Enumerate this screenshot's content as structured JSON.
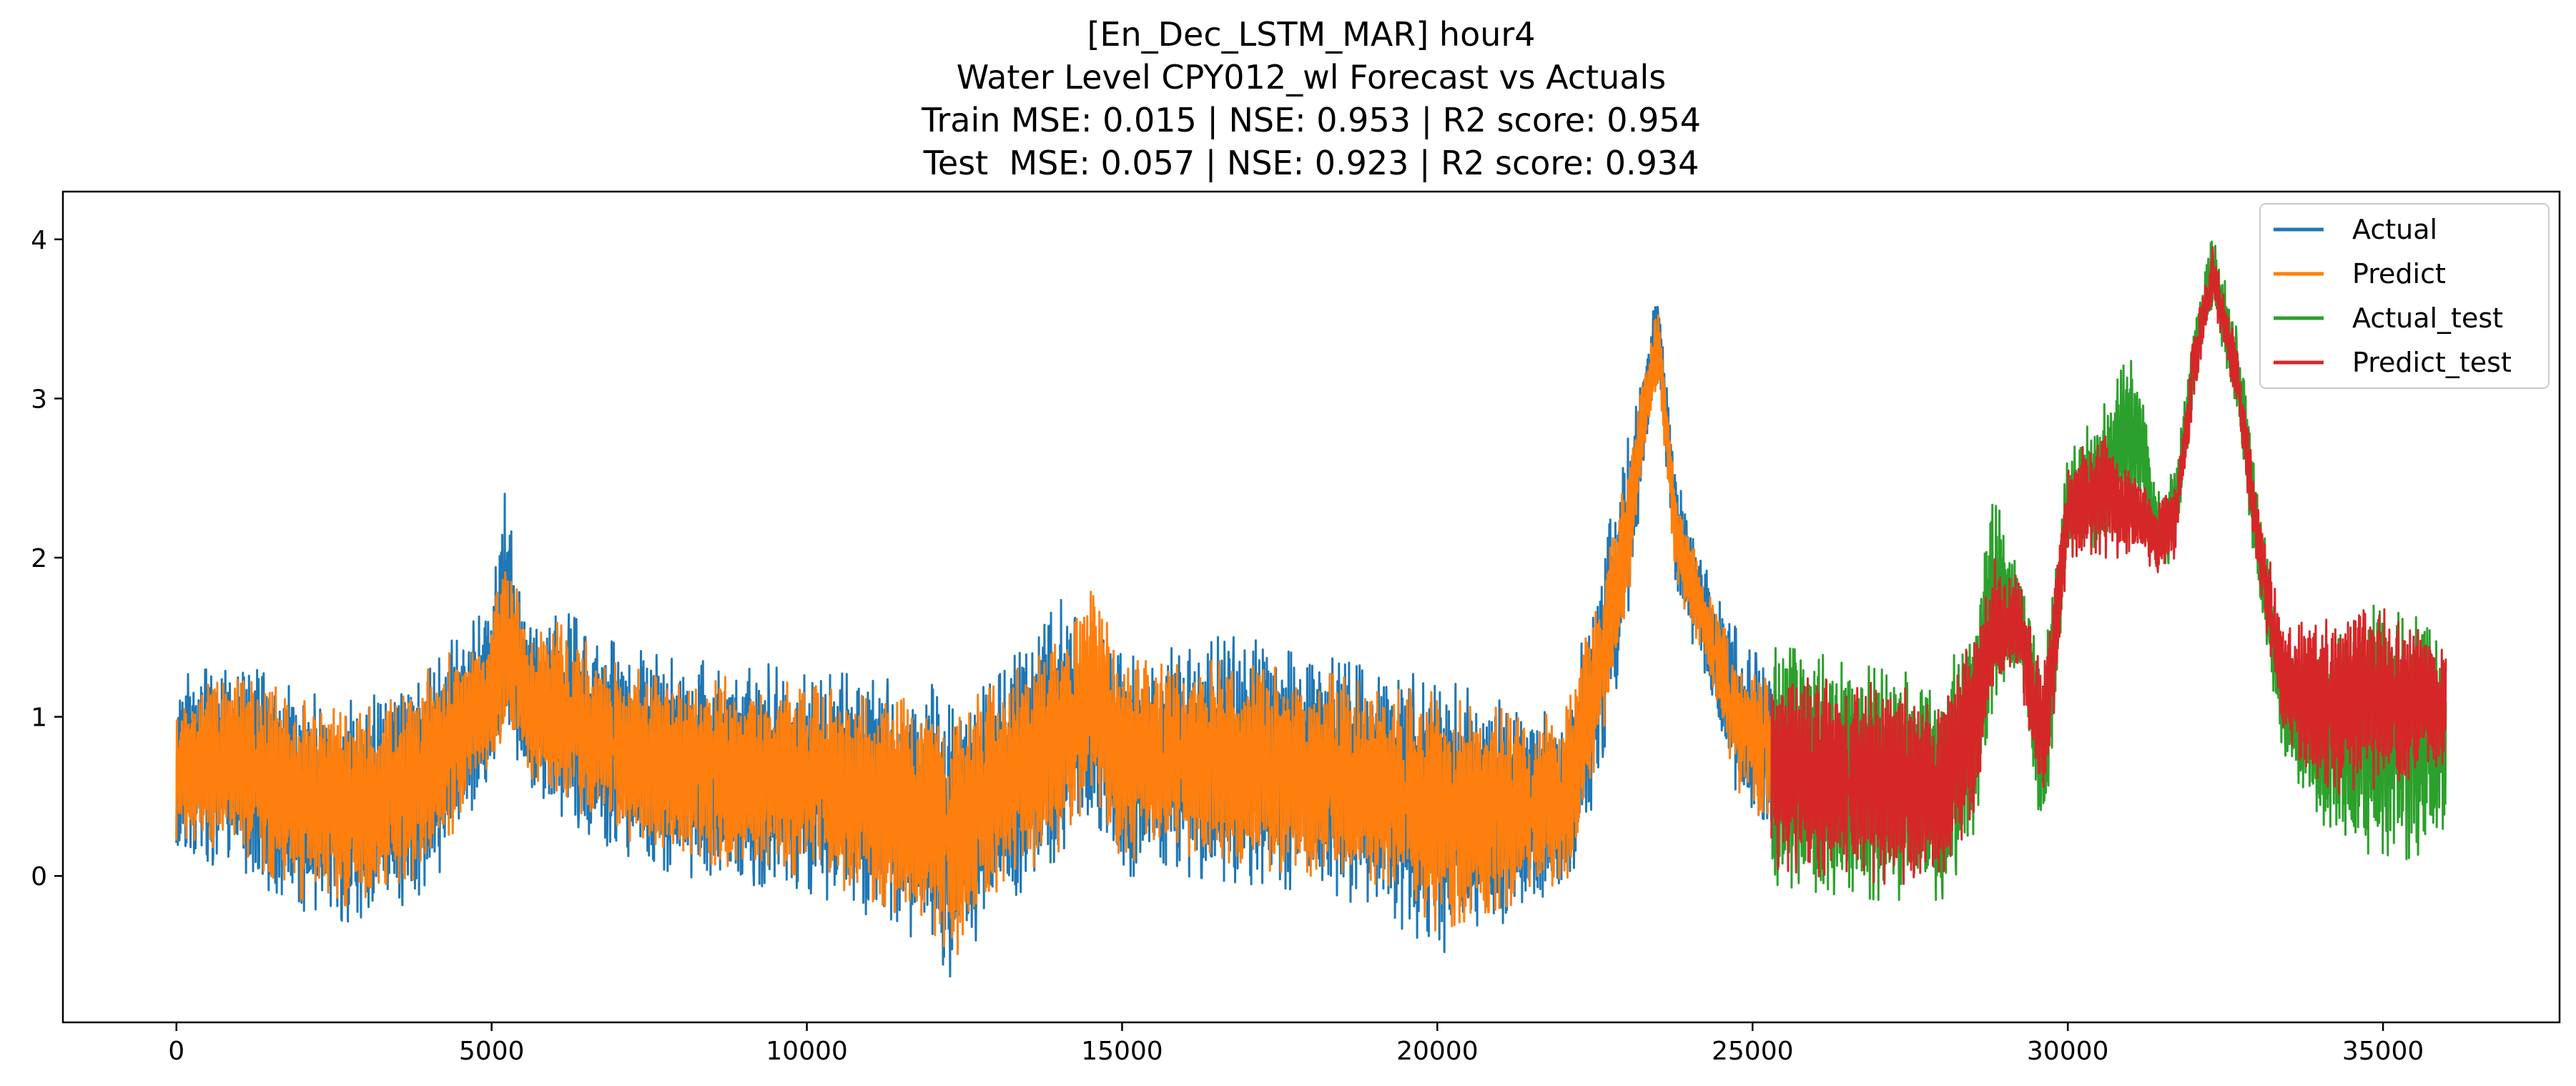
{
  "chart_data": {
    "type": "line",
    "title_lines": [
      "[En_Dec_LSTM_MAR] hour4",
      "Water Level CPY012_wl Forecast vs Actuals",
      "Train MSE: 0.015 | NSE: 0.953 | R2 score: 0.954",
      "Test  MSE: 0.057 | NSE: 0.923 | R2 score: 0.934"
    ],
    "xlabel": "",
    "ylabel": "",
    "xlim": [
      -1800,
      37800
    ],
    "ylim": [
      -0.92,
      4.3
    ],
    "xticks": [
      0,
      5000,
      10000,
      15000,
      20000,
      25000,
      30000,
      35000
    ],
    "yticks": [
      0,
      1,
      2,
      3,
      4
    ],
    "grid": false,
    "legend_position": "top-right",
    "train_range": [
      0,
      25300
    ],
    "test_range": [
      25300,
      36000
    ],
    "series": [
      {
        "name": "Actual",
        "color": "#1f77b4",
        "segment": "train",
        "envelope": [
          [
            0,
            0.1,
            1.25
          ],
          [
            1000,
            0.05,
            1.35
          ],
          [
            2000,
            -0.25,
            1.15
          ],
          [
            3000,
            -0.3,
            1.1
          ],
          [
            4000,
            -0.1,
            1.35
          ],
          [
            5000,
            0.6,
            1.7
          ],
          [
            5200,
            0.85,
            2.45
          ],
          [
            5600,
            0.5,
            1.55
          ],
          [
            6000,
            0.4,
            1.7
          ],
          [
            7000,
            0.15,
            1.45
          ],
          [
            8000,
            0.0,
            1.35
          ],
          [
            9000,
            -0.05,
            1.35
          ],
          [
            10000,
            -0.1,
            1.3
          ],
          [
            11000,
            -0.25,
            1.25
          ],
          [
            12000,
            -0.45,
            1.2
          ],
          [
            12300,
            -0.65,
            1.15
          ],
          [
            13000,
            -0.2,
            1.3
          ],
          [
            14000,
            0.05,
            1.75
          ],
          [
            14500,
            0.4,
            1.5
          ],
          [
            15000,
            0.0,
            1.45
          ],
          [
            16000,
            0.0,
            1.5
          ],
          [
            17000,
            -0.05,
            1.5
          ],
          [
            18000,
            -0.1,
            1.4
          ],
          [
            19000,
            -0.2,
            1.3
          ],
          [
            20000,
            -0.5,
            1.25
          ],
          [
            21000,
            -0.3,
            1.1
          ],
          [
            22000,
            -0.2,
            1.0
          ],
          [
            22500,
            0.5,
            1.8
          ],
          [
            23000,
            1.5,
            2.7
          ],
          [
            23300,
            2.6,
            3.3
          ],
          [
            23500,
            3.2,
            3.7
          ],
          [
            23800,
            1.7,
            2.5
          ],
          [
            24200,
            1.3,
            2.0
          ],
          [
            24800,
            0.4,
            1.5
          ],
          [
            25300,
            0.2,
            1.3
          ]
        ]
      },
      {
        "name": "Predict",
        "color": "#ff7f0e",
        "segment": "train",
        "envelope": [
          [
            0,
            0.2,
            1.1
          ],
          [
            1000,
            0.15,
            1.3
          ],
          [
            2000,
            -0.15,
            1.1
          ],
          [
            3000,
            -0.2,
            1.05
          ],
          [
            4000,
            0.0,
            1.3
          ],
          [
            5000,
            0.7,
            1.6
          ],
          [
            5200,
            0.9,
            2.1
          ],
          [
            5600,
            0.6,
            1.5
          ],
          [
            6000,
            0.5,
            1.6
          ],
          [
            7000,
            0.25,
            1.35
          ],
          [
            8000,
            0.1,
            1.25
          ],
          [
            9000,
            0.05,
            1.25
          ],
          [
            10000,
            0.0,
            1.2
          ],
          [
            11000,
            -0.15,
            1.15
          ],
          [
            12000,
            -0.35,
            1.1
          ],
          [
            12300,
            -0.55,
            1.05
          ],
          [
            13000,
            -0.1,
            1.2
          ],
          [
            14000,
            0.15,
            1.5
          ],
          [
            14500,
            0.5,
            1.85
          ],
          [
            15000,
            0.1,
            1.35
          ],
          [
            16000,
            0.1,
            1.35
          ],
          [
            17000,
            0.05,
            1.35
          ],
          [
            18000,
            0.0,
            1.3
          ],
          [
            19000,
            -0.1,
            1.2
          ],
          [
            20000,
            -0.35,
            1.15
          ],
          [
            21000,
            -0.2,
            1.05
          ],
          [
            22000,
            -0.1,
            1.0
          ],
          [
            22500,
            0.6,
            1.7
          ],
          [
            23000,
            1.6,
            2.6
          ],
          [
            23300,
            2.7,
            3.2
          ],
          [
            23500,
            3.1,
            3.6
          ],
          [
            23800,
            1.8,
            2.4
          ],
          [
            24200,
            1.4,
            1.9
          ],
          [
            24800,
            0.5,
            1.4
          ],
          [
            25300,
            0.3,
            1.2
          ]
        ]
      },
      {
        "name": "Actual_test",
        "color": "#2ca02c",
        "segment": "test",
        "envelope": [
          [
            25300,
            -0.05,
            1.45
          ],
          [
            26000,
            -0.1,
            1.4
          ],
          [
            27000,
            -0.15,
            1.3
          ],
          [
            28000,
            -0.15,
            1.25
          ],
          [
            28500,
            0.2,
            1.6
          ],
          [
            28800,
            1.0,
            2.5
          ],
          [
            29200,
            1.3,
            2.0
          ],
          [
            29600,
            0.2,
            1.3
          ],
          [
            29800,
            1.0,
            2.0
          ],
          [
            30000,
            2.0,
            2.7
          ],
          [
            30500,
            2.0,
            2.9
          ],
          [
            31000,
            2.3,
            3.3
          ],
          [
            31200,
            2.3,
            3.0
          ],
          [
            31400,
            1.9,
            2.4
          ],
          [
            31700,
            2.0,
            2.6
          ],
          [
            32000,
            3.0,
            3.5
          ],
          [
            32300,
            3.6,
            4.05
          ],
          [
            32700,
            2.8,
            3.4
          ],
          [
            33000,
            1.8,
            2.5
          ],
          [
            33400,
            0.8,
            1.4
          ],
          [
            34000,
            0.3,
            1.4
          ],
          [
            35000,
            0.05,
            1.75
          ],
          [
            36000,
            0.2,
            1.6
          ]
        ]
      },
      {
        "name": "Predict_test",
        "color": "#d62728",
        "segment": "test",
        "envelope": [
          [
            25300,
            0.05,
            1.35
          ],
          [
            26000,
            0.0,
            1.3
          ],
          [
            27000,
            -0.05,
            1.2
          ],
          [
            28000,
            -0.05,
            1.15
          ],
          [
            28500,
            0.3,
            1.5
          ],
          [
            28800,
            1.1,
            2.0
          ],
          [
            29200,
            1.3,
            1.9
          ],
          [
            29600,
            0.35,
            1.3
          ],
          [
            29800,
            1.1,
            1.9
          ],
          [
            30000,
            2.0,
            2.6
          ],
          [
            30500,
            2.0,
            2.8
          ],
          [
            31000,
            2.0,
            2.6
          ],
          [
            31200,
            2.0,
            2.5
          ],
          [
            31400,
            1.9,
            2.3
          ],
          [
            31700,
            2.0,
            2.5
          ],
          [
            32000,
            3.0,
            3.4
          ],
          [
            32300,
            3.6,
            3.95
          ],
          [
            32700,
            2.9,
            3.3
          ],
          [
            33000,
            1.9,
            2.4
          ],
          [
            33400,
            0.9,
            1.6
          ],
          [
            34000,
            0.5,
            1.6
          ],
          [
            35000,
            0.55,
            1.7
          ],
          [
            36000,
            0.7,
            1.5
          ]
        ]
      }
    ]
  }
}
